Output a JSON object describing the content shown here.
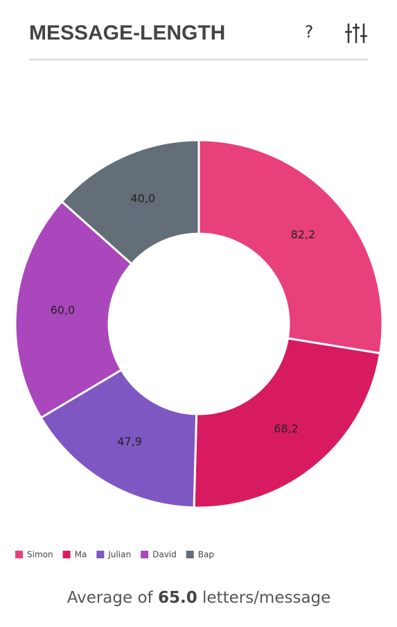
{
  "header": {
    "title": "MESSAGE-LENGTH",
    "help": "?"
  },
  "chart_data": {
    "type": "pie",
    "categories": [
      "Simon",
      "Ma",
      "Julian",
      "David",
      "Bap"
    ],
    "values": [
      82.2,
      68.2,
      47.9,
      60.0,
      40.0
    ],
    "value_labels": [
      "82,2",
      "68,2",
      "47,9",
      "60,0",
      "40,0"
    ],
    "colors": [
      "#e8407a",
      "#d81b60",
      "#7e57c2",
      "#ab47bc",
      "#636e78"
    ]
  },
  "footer": {
    "prefix": "Average of",
    "value": "65.0",
    "suffix": "letters/message"
  }
}
